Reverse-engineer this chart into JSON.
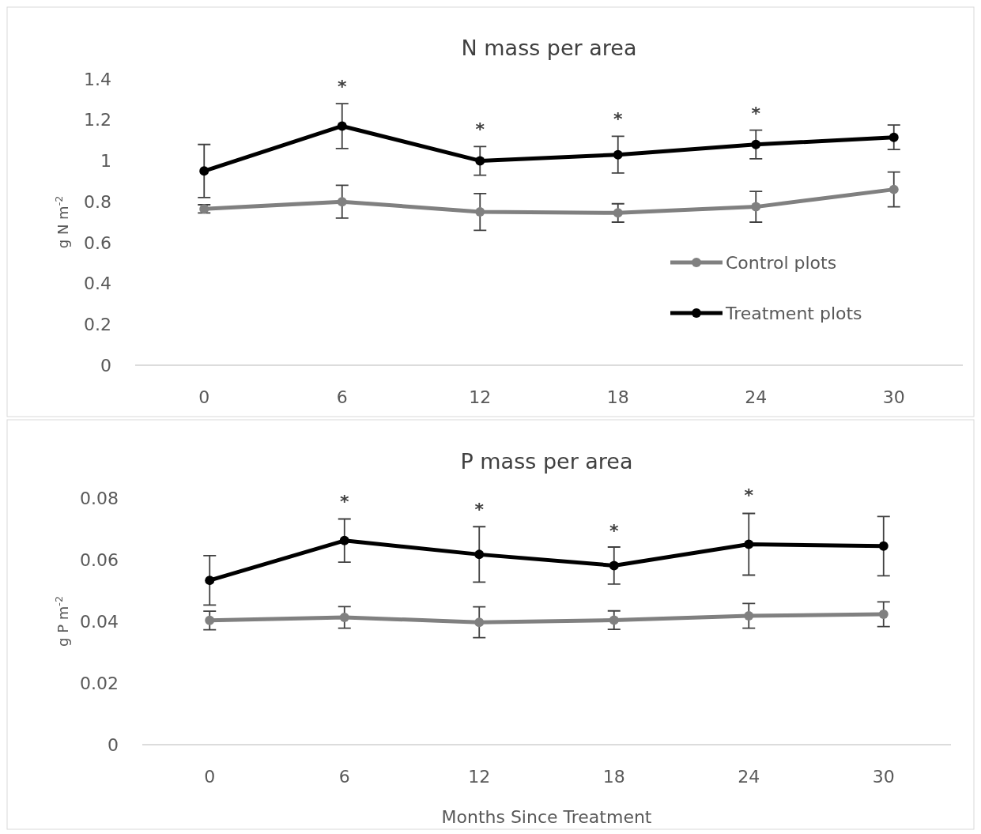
{
  "chart_data": [
    {
      "type": "line",
      "title": "N mass per area",
      "ylabel": "g N m$^{-2}$",
      "categories": [
        "0",
        "6",
        "12",
        "18",
        "24",
        "30"
      ],
      "ylim": [
        0,
        1.4
      ],
      "yticks": [
        0,
        0.2,
        0.4,
        0.6,
        0.8,
        1,
        1.2,
        1.4
      ],
      "grid": false,
      "legend": "right",
      "marker": "circle",
      "line_style": "solid",
      "series": [
        {
          "name": "Control plots",
          "color": "#808080",
          "values": [
            0.765,
            0.8,
            0.75,
            0.745,
            0.775,
            0.86
          ],
          "errors": [
            0.02,
            0.08,
            0.09,
            0.045,
            0.075,
            0.085
          ]
        },
        {
          "name": "Treatment plots",
          "color": "#000000",
          "values": [
            0.95,
            1.17,
            1.0,
            1.03,
            1.08,
            1.115
          ],
          "errors": [
            0.13,
            0.11,
            0.07,
            0.09,
            0.07,
            0.06
          ]
        }
      ],
      "annotations": [
        {
          "text": "*",
          "x": "6",
          "y": 1.28
        },
        {
          "text": "*",
          "x": "12",
          "y": 1.07
        },
        {
          "text": "*",
          "x": "18",
          "y": 1.12
        },
        {
          "text": "*",
          "x": "24",
          "y": 1.15
        }
      ]
    },
    {
      "type": "line",
      "title": "P mass per area",
      "xlabel": "Months Since Treatment",
      "ylabel": "g P m$^{-2}$",
      "categories": [
        "0",
        "6",
        "12",
        "18",
        "24",
        "30"
      ],
      "ylim": [
        0,
        0.08
      ],
      "yticks": [
        0,
        0.02,
        0.04,
        0.06,
        0.08
      ],
      "grid": false,
      "legend": false,
      "marker": "circle",
      "line_style": "solid",
      "series": [
        {
          "color": "#808080",
          "values": [
            0.0403,
            0.0413,
            0.0397,
            0.0404,
            0.0418,
            0.0423
          ],
          "errors": [
            0.003,
            0.0035,
            0.005,
            0.003,
            0.004,
            0.004
          ]
        },
        {
          "color": "#000000",
          "values": [
            0.0533,
            0.0662,
            0.0617,
            0.0581,
            0.065,
            0.0644
          ],
          "errors": [
            0.008,
            0.007,
            0.009,
            0.006,
            0.01,
            0.0096
          ]
        }
      ],
      "annotations": [
        {
          "text": "*",
          "x": "6",
          "y": 0.0733
        },
        {
          "text": "*",
          "x": "12",
          "y": 0.0708
        },
        {
          "text": "*",
          "x": "18",
          "y": 0.0638
        },
        {
          "text": "*",
          "x": "24",
          "y": 0.0754
        }
      ]
    }
  ]
}
